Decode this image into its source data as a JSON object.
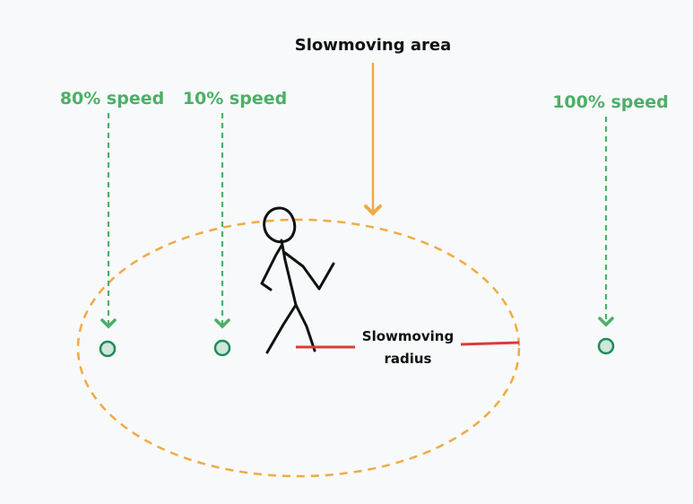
{
  "title": "Slowmoving area",
  "radius_label": [
    "Slowmoving",
    "radius"
  ],
  "markers": [
    {
      "label": "80% speed"
    },
    {
      "label": "10% speed"
    },
    {
      "label": "100% speed"
    }
  ],
  "colors": {
    "background": "#f8f9fa",
    "green": "#4caf67",
    "dot_stroke": "#1e8a5a",
    "dot_fill": "#cfe6dc",
    "orange": "#efab43",
    "red": "#dc3a3a",
    "ink": "#111111"
  }
}
